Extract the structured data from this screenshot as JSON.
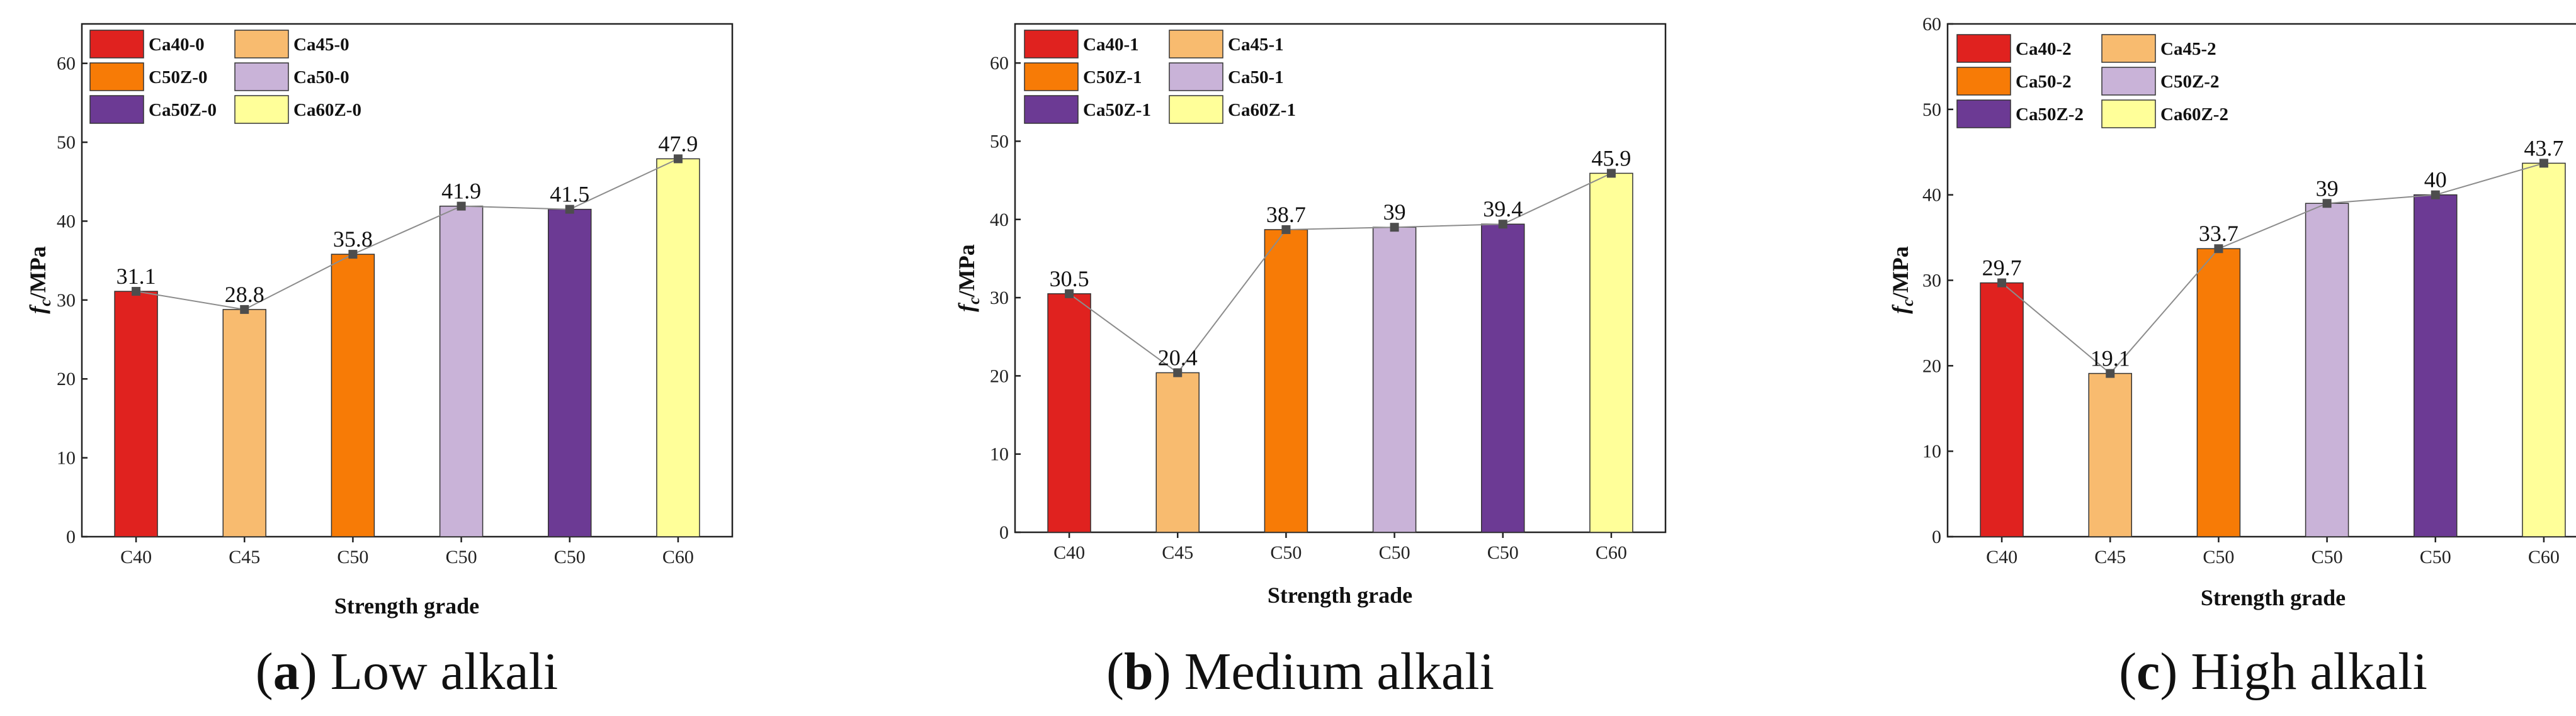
{
  "colors": {
    "red": "#e0221f",
    "light_orange": "#f8bb6f",
    "orange": "#f77b06",
    "lilac": "#c9b3d8",
    "purple": "#6c3a94",
    "yellow": "#ffff99",
    "line": "#8c8c8c",
    "marker": "#4d4d4d"
  },
  "chart_data": [
    {
      "type": "bar",
      "caption_letter": "a",
      "caption_text": " Low alkali",
      "categories": [
        "C40",
        "C45",
        "C50",
        "C50",
        "C50",
        "C60"
      ],
      "series_names": [
        "Ca40-0",
        "Ca45-0",
        "C50Z-0",
        "Ca50-0",
        "Ca50Z-0",
        "Ca60Z-0"
      ],
      "values": [
        31.1,
        28.8,
        35.8,
        41.9,
        41.5,
        47.9
      ],
      "value_labels": [
        "31.1",
        "28.8",
        "35.8",
        "41.9",
        "41.5",
        "47.9"
      ],
      "bar_colors": [
        "#e0221f",
        "#f8bb6f",
        "#f77b06",
        "#c9b3d8",
        "#6c3a94",
        "#ffff99"
      ],
      "xlabel": "Strength grade",
      "ylabel_main": "f",
      "ylabel_sub": "c",
      "ylabel_rest": "/MPa",
      "ylim": [
        0,
        65
      ],
      "yticks": [
        0,
        10,
        20,
        30,
        40,
        50,
        60
      ],
      "ytick_labels": [
        "0",
        "10",
        "20",
        "30",
        "40",
        "50",
        "60"
      ],
      "legend_position": "top-left"
    },
    {
      "type": "bar",
      "caption_letter": "b",
      "caption_text": " Medium alkali",
      "categories": [
        "C40",
        "C45",
        "C50",
        "C50",
        "C50",
        "C60"
      ],
      "series_names": [
        "Ca40-1",
        "Ca45-1",
        "C50Z-1",
        "Ca50-1",
        "Ca50Z-1",
        "Ca60Z-1"
      ],
      "values": [
        30.5,
        20.4,
        38.7,
        39,
        39.4,
        45.9
      ],
      "value_labels": [
        "30.5",
        "20.4",
        "38.7",
        "39",
        "39.4",
        "45.9"
      ],
      "bar_colors": [
        "#e0221f",
        "#f8bb6f",
        "#f77b06",
        "#c9b3d8",
        "#6c3a94",
        "#ffff99"
      ],
      "xlabel": "Strength grade",
      "ylabel_main": "f",
      "ylabel_sub": "c",
      "ylabel_rest": "/MPa",
      "ylim": [
        0,
        65
      ],
      "yticks": [
        0,
        10,
        20,
        30,
        40,
        50,
        60
      ],
      "ytick_labels": [
        "0",
        "10",
        "20",
        "30",
        "40",
        "50",
        "60"
      ],
      "legend_position": "top-left"
    },
    {
      "type": "bar",
      "caption_letter": "c",
      "caption_text": " High alkali",
      "categories": [
        "C40",
        "C45",
        "C50",
        "C50",
        "C50",
        "C60"
      ],
      "series_names": [
        "Ca40-2",
        "Ca45-2",
        "Ca50-2",
        "C50Z-2",
        "Ca50Z-2",
        "Ca60Z-2"
      ],
      "values": [
        29.7,
        19.1,
        33.7,
        39,
        40,
        43.7
      ],
      "value_labels": [
        "29.7",
        "19.1",
        "33.7",
        "39",
        "40",
        "43.7"
      ],
      "bar_colors": [
        "#e0221f",
        "#f8bb6f",
        "#f77b06",
        "#c9b3d8",
        "#6c3a94",
        "#ffff99"
      ],
      "xlabel": "Strength grade",
      "ylabel_main": "f",
      "ylabel_sub": "c",
      "ylabel_rest": "/MPa",
      "ylim": [
        0,
        60
      ],
      "yticks": [
        0,
        10,
        20,
        30,
        40,
        50,
        60
      ],
      "ytick_labels": [
        "0",
        "10",
        "20",
        "30",
        "40",
        "50",
        "60"
      ],
      "legend_position": "top-left"
    }
  ]
}
